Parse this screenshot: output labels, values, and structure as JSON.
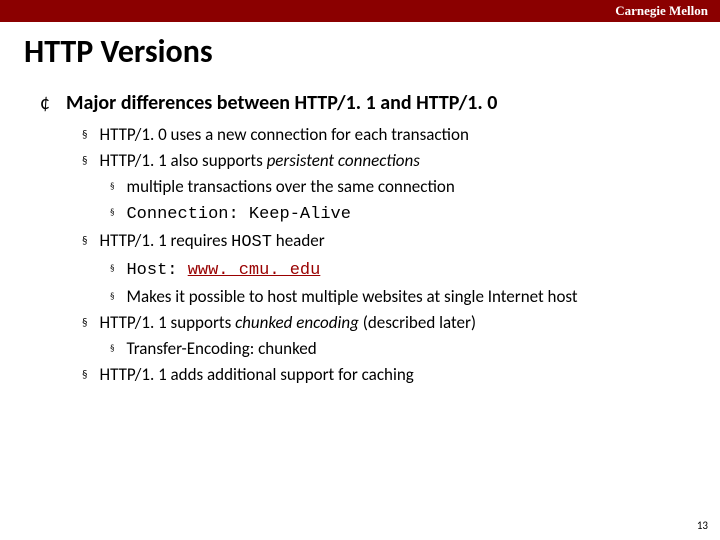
{
  "colors": {
    "brand_bar_bg": "#8b0000",
    "brand_bar_text": "#ffffff",
    "text": "#000000",
    "link": "#990000"
  },
  "header": {
    "brand": "Carnegie Mellon",
    "title": "HTTP Versions"
  },
  "page_number": "13",
  "bullets": {
    "l0_marker": "¢",
    "l1_marker": "§",
    "l2_marker": "§"
  },
  "content": {
    "heading": "Major differences between HTTP/1. 1 and HTTP/1. 0",
    "items": [
      {
        "runs": [
          {
            "text": "HTTP/1. 0 uses a new connection for each transaction"
          }
        ]
      },
      {
        "runs": [
          {
            "text": "HTTP/1. 1 also supports "
          },
          {
            "text": "persistent connections",
            "style": "ital"
          }
        ],
        "sub": [
          {
            "runs": [
              {
                "text": "multiple transactions over the same connection"
              }
            ]
          },
          {
            "runs": [
              {
                "text": "Connection: Keep-Alive",
                "style": "mono"
              }
            ]
          }
        ]
      },
      {
        "runs": [
          {
            "text": "HTTP/1. 1 requires "
          },
          {
            "text": "HOST",
            "style": "mono"
          },
          {
            "text": " header"
          }
        ],
        "sub": [
          {
            "runs": [
              {
                "text": "Host: ",
                "style": "mono"
              },
              {
                "text": "www. cmu. edu",
                "style": "mono link",
                "link": true
              }
            ]
          },
          {
            "runs": [
              {
                "text": "Makes it possible to host multiple websites at single Internet host"
              }
            ]
          }
        ]
      },
      {
        "runs": [
          {
            "text": "HTTP/1. 1 supports "
          },
          {
            "text": "chunked encoding",
            "style": "ital"
          },
          {
            "text": " (described later)"
          }
        ],
        "sub": [
          {
            "runs": [
              {
                "text": "Transfer-Encoding: chunked"
              }
            ]
          }
        ]
      },
      {
        "runs": [
          {
            "text": "HTTP/1. 1 adds additional support for caching"
          }
        ]
      }
    ]
  }
}
